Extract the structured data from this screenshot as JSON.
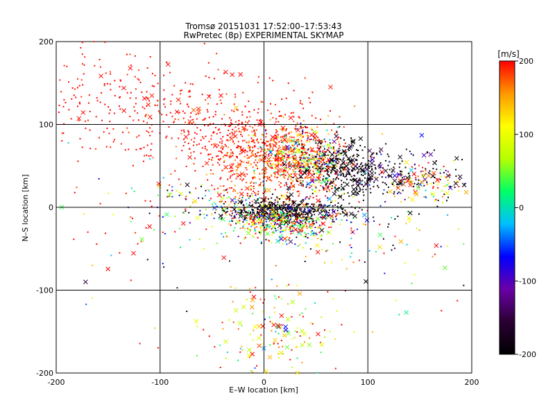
{
  "chart_data": {
    "type": "scatter",
    "title": "Tromsø 20151031 17:52:00–17:53:43",
    "subtitle": "RwPretec (8p) EXPERIMENTAL SKYMAP",
    "xlabel": "E–W location [km]",
    "ylabel": "N–S location [km]",
    "xlim": [
      -200,
      200
    ],
    "ylim": [
      -200,
      200
    ],
    "xticks": [
      -200,
      -100,
      0,
      100,
      200
    ],
    "yticks": [
      -200,
      -100,
      0,
      100,
      200
    ],
    "grid": true,
    "colorbar": {
      "label": "[m/s]",
      "range": [
        -200,
        200
      ],
      "ticks": [
        200,
        100,
        0,
        -100,
        -200
      ],
      "colormap": [
        "#000000",
        "#2a0033",
        "#6a00a8",
        "#0000ff",
        "#00bfff",
        "#00ff66",
        "#b5ff00",
        "#ffff00",
        "#ff9900",
        "#ff0000"
      ]
    },
    "clusters": [
      {
        "x": -130,
        "y": 130,
        "sx": 45,
        "sy": 35,
        "n": 240,
        "v": 200,
        "dv": 10,
        "cross": 0.07
      },
      {
        "x": -30,
        "y": 95,
        "sx": 40,
        "sy": 25,
        "n": 300,
        "v": 200,
        "dv": 15,
        "cross": 0.05
      },
      {
        "x": 5,
        "y": 55,
        "sx": 30,
        "sy": 25,
        "n": 600,
        "v": 190,
        "dv": 25,
        "cross": 0.06
      },
      {
        "x": 40,
        "y": 60,
        "sx": 20,
        "sy": 18,
        "n": 420,
        "v": 100,
        "dv": 130,
        "cross": 0.12
      },
      {
        "x": 75,
        "y": 45,
        "sx": 20,
        "sy": 20,
        "n": 280,
        "v": -190,
        "dv": 30,
        "cross": 0.15
      },
      {
        "x": 130,
        "y": 40,
        "sx": 35,
        "sy": 15,
        "n": 220,
        "v": -180,
        "dv": 70,
        "cross": 0.2
      },
      {
        "x": 155,
        "y": 30,
        "sx": 20,
        "sy": 10,
        "n": 80,
        "v": 150,
        "dv": 60,
        "cross": 0.2
      },
      {
        "x": -40,
        "y": 5,
        "sx": 40,
        "sy": 12,
        "n": 160,
        "v": 40,
        "dv": 150,
        "cross": 0.12
      },
      {
        "x": 20,
        "y": -5,
        "sx": 28,
        "sy": 7,
        "n": 450,
        "v": -195,
        "dv": 25,
        "cross": 0.1
      },
      {
        "x": 15,
        "y": -18,
        "sx": 25,
        "sy": 10,
        "n": 350,
        "v": 90,
        "dv": 110,
        "cross": 0.06
      },
      {
        "x": 60,
        "y": -20,
        "sx": 40,
        "sy": 25,
        "n": 160,
        "v": 0,
        "dv": 180,
        "cross": 0.2
      },
      {
        "x": 15,
        "y": -150,
        "sx": 30,
        "sy": 30,
        "n": 160,
        "v": 120,
        "dv": 90,
        "cross": 0.3
      },
      {
        "x": -110,
        "y": -40,
        "sx": 50,
        "sy": 60,
        "n": 60,
        "v": 100,
        "dv": 150,
        "cross": 0.3
      },
      {
        "x": 150,
        "y": -40,
        "sx": 40,
        "sy": 50,
        "n": 50,
        "v": 50,
        "dv": 150,
        "cross": 0.3
      }
    ]
  }
}
